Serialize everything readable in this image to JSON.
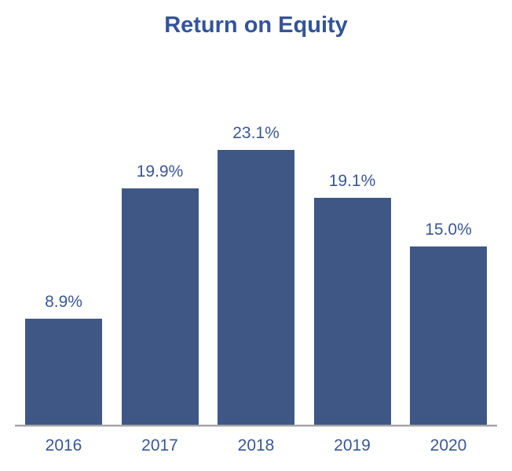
{
  "chart_data": {
    "type": "bar",
    "title": "Return on Equity",
    "categories": [
      "2016",
      "2017",
      "2018",
      "2019",
      "2020"
    ],
    "values": [
      8.9,
      19.9,
      23.1,
      19.1,
      15.0
    ],
    "value_labels": [
      "8.9%",
      "19.9%",
      "23.1%",
      "19.1%",
      "15.0%"
    ],
    "xlabel": "",
    "ylabel": "",
    "ylim": [
      0,
      25
    ],
    "grid": false,
    "legend": false,
    "colors": {
      "bar": "#3e5785",
      "data_label": "#3a5795",
      "title": "#33549a",
      "tick_label": "#3a5795",
      "axis_line": "#a3a3a3"
    }
  }
}
